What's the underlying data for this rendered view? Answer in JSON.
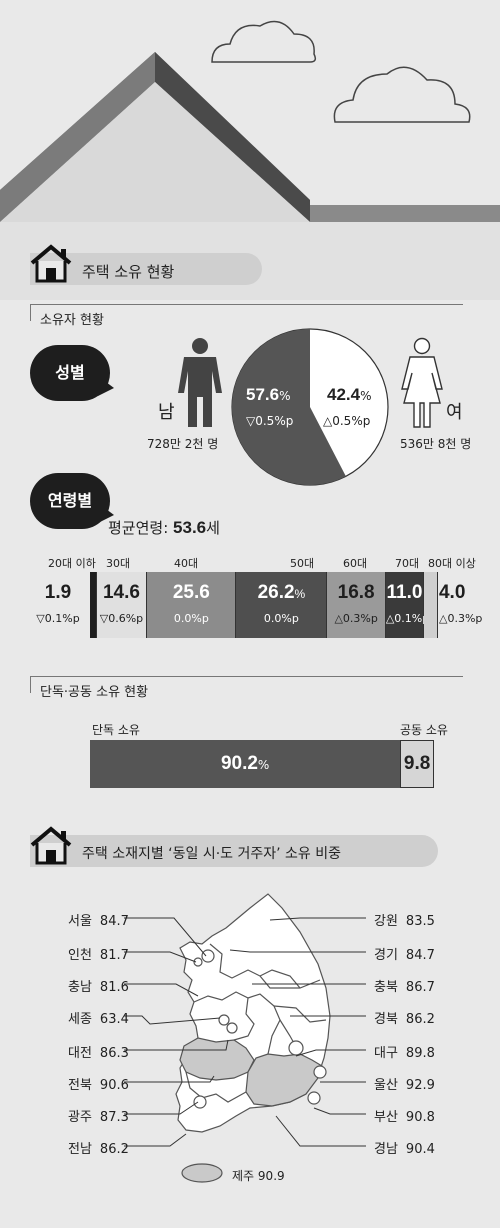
{
  "section1": {
    "title": "주택 소유 현황"
  },
  "owners": {
    "heading": "소유자 현황",
    "gender": {
      "label": "성별",
      "male": {
        "label": "남",
        "count": "728만 2천 명",
        "share_value": "57.6",
        "share_unit": "%",
        "change": "▽0.5%p"
      },
      "female": {
        "label": "여",
        "count": "536만 8천 명",
        "share_value": "42.4",
        "share_unit": "%",
        "change": "△0.5%p"
      }
    },
    "age": {
      "label": "연령별",
      "avg_label": "평균연령:",
      "avg_value": "53.6",
      "avg_unit": "세",
      "groups": [
        {
          "label": "20대 이하",
          "value": "1.9",
          "change": "▽0.1%p"
        },
        {
          "label": "30대",
          "value": "14.6",
          "change": "▽0.6%p"
        },
        {
          "label": "40대",
          "value": "25.6",
          "change": "0.0%p"
        },
        {
          "label": "50대",
          "value": "26.2",
          "unit": "%",
          "change": "0.0%p"
        },
        {
          "label": "60대",
          "value": "16.8",
          "change": "△0.3%p"
        },
        {
          "label": "70대",
          "value": "11.0",
          "change": "△0.1%p"
        },
        {
          "label": "80대 이상",
          "value": "4.0",
          "change": "△0.3%p"
        }
      ]
    }
  },
  "ownership": {
    "heading": "단독·공동 소유 현황",
    "single_label": "단독 소유",
    "joint_label": "공동 소유",
    "single_value": "90.2",
    "single_unit": "%",
    "joint_value": "9.8"
  },
  "section2": {
    "title": "주택 소재지별 ‘동일 시·도 거주자’ 소유 비중"
  },
  "regions": {
    "left": [
      {
        "name": "서울",
        "value": "84.7"
      },
      {
        "name": "인천",
        "value": "81.7"
      },
      {
        "name": "충남",
        "value": "81.6"
      },
      {
        "name": "세종",
        "value": "63.4"
      },
      {
        "name": "대전",
        "value": "86.3"
      },
      {
        "name": "전북",
        "value": "90.6"
      },
      {
        "name": "광주",
        "value": "87.3"
      },
      {
        "name": "전남",
        "value": "86.2"
      }
    ],
    "right": [
      {
        "name": "강원",
        "value": "83.5"
      },
      {
        "name": "경기",
        "value": "84.7"
      },
      {
        "name": "충북",
        "value": "86.7"
      },
      {
        "name": "경북",
        "value": "86.2"
      },
      {
        "name": "대구",
        "value": "89.8"
      },
      {
        "name": "울산",
        "value": "92.9"
      },
      {
        "name": "부산",
        "value": "90.8"
      },
      {
        "name": "경남",
        "value": "90.4"
      }
    ],
    "jeju": {
      "name": "제주",
      "value": "90.9"
    }
  },
  "chart_data": [
    {
      "type": "pie",
      "categories": [
        "남",
        "여"
      ],
      "values": [
        57.6,
        42.4
      ]
    },
    {
      "type": "bar",
      "categories": [
        "20대 이하",
        "30대",
        "40대",
        "50대",
        "60대",
        "70대",
        "80대 이상"
      ],
      "values": [
        1.9,
        14.6,
        25.6,
        26.2,
        16.8,
        11.0,
        4.0
      ]
    },
    {
      "type": "bar",
      "categories": [
        "단독 소유",
        "공동 소유"
      ],
      "values": [
        90.2,
        9.8
      ]
    }
  ],
  "colors": {
    "dark": "#4f4f4f",
    "mid": "#8c8c8c",
    "light": "#d3d3d3",
    "black": "#1e1e1e",
    "background": "#e9e9e9"
  }
}
